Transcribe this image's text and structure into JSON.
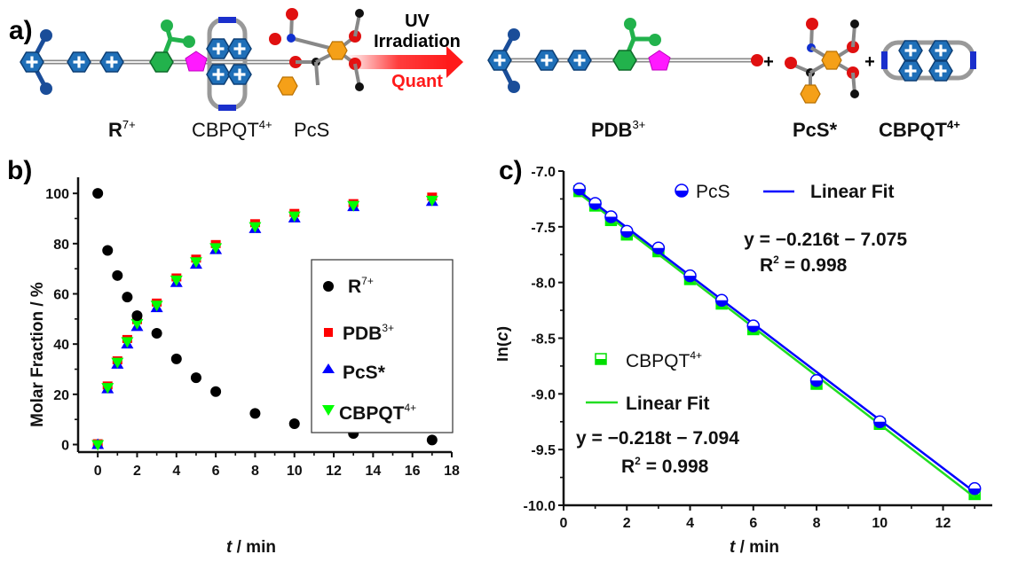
{
  "scheme": {
    "panel_label": "a)",
    "arrow_top_line1": "UV",
    "arrow_top_line2": "Irradiation",
    "arrow_bottom": "Quant",
    "plus": "+",
    "labels": {
      "r_base": "R",
      "r_sup": "7+",
      "cbpqt_base": "CBPQT",
      "cbpqt_sup": "4+",
      "pcs": "PcS",
      "pdb_base": "PDB",
      "pdb_sup": "3+",
      "pcs_star": "PcS*",
      "cbpqt2_base": "CBPQT",
      "cbpqt2_sup": "4+"
    },
    "colors": {
      "arrow": "#ff1a1a",
      "pyridinium": "#1f6fb8",
      "stopper": "#1a4d99",
      "green_unit": "#22b24c",
      "pentagon": "#ff1aff",
      "oxygen": "#e01010",
      "carbon": "#111111",
      "nitrogen": "#1030d0",
      "orange_ring": "#f5a018"
    }
  },
  "chart_data": [
    {
      "panel_label": "b)",
      "type": "scatter",
      "title": "",
      "xlabel_italic": "t",
      "xlabel_rest": " / min",
      "ylabel": "Molar Fraction / %",
      "xlim": [
        -1,
        18
      ],
      "ylim": [
        -3,
        105
      ],
      "xticks": [
        0,
        2,
        4,
        6,
        8,
        10,
        12,
        14,
        16,
        18
      ],
      "xtick_labels": [
        "0",
        "2",
        "4",
        "6",
        "8",
        "10",
        "12",
        "14",
        "16",
        "18"
      ],
      "yticks": [
        0,
        20,
        40,
        60,
        80,
        100
      ],
      "ytick_labels": [
        "0",
        "20",
        "40",
        "60",
        "80",
        "100"
      ],
      "grid": false,
      "legend_position": "center-right",
      "x": [
        0,
        0.5,
        1,
        1.5,
        2,
        3,
        4,
        5,
        6,
        8,
        10,
        13,
        17
      ],
      "series": [
        {
          "name": "R",
          "sup": "7+",
          "marker": "circle",
          "color": "#000000",
          "values": [
            100,
            77.3,
            67.3,
            58.7,
            51.3,
            44.3,
            34.1,
            26.6,
            21.1,
            12.4,
            8.3,
            4.4,
            1.8
          ]
        },
        {
          "name": "PDB",
          "sup": "3+",
          "marker": "square",
          "color": "#ff0000",
          "values": [
            0,
            23,
            33,
            41.5,
            49,
            56,
            66,
            73.5,
            79.3,
            87.6,
            91.7,
            95.6,
            98.2
          ]
        },
        {
          "name": "PcS*",
          "sup": "",
          "marker": "triangle-up",
          "color": "#0000ff",
          "values": [
            0,
            22.2,
            32,
            40,
            47,
            54.5,
            64.5,
            71.8,
            77.6,
            86,
            90.2,
            94.7,
            96.8
          ]
        },
        {
          "name": "CBPQT",
          "sup": "4+",
          "marker": "triangle-down",
          "color": "#00ff00",
          "values": [
            0,
            22.7,
            32.8,
            41,
            48.2,
            55.5,
            65.5,
            72.8,
            78.4,
            86.8,
            91,
            95.2,
            97.3
          ]
        }
      ]
    },
    {
      "panel_label": "c)",
      "type": "scatter",
      "title": "",
      "xlabel_italic": "t",
      "xlabel_rest": " / min",
      "ylabel_pre": "ln(",
      "ylabel_italic": "c",
      "ylabel_post": ")",
      "xlim": [
        0,
        13.5
      ],
      "ylim": [
        -10.0,
        -7.0
      ],
      "xticks": [
        0,
        2,
        4,
        6,
        8,
        10,
        12
      ],
      "xtick_labels": [
        "0",
        "2",
        "4",
        "6",
        "8",
        "10",
        "12"
      ],
      "yticks": [
        -7.0,
        -7.5,
        -8.0,
        -8.5,
        -9.0,
        -9.5,
        -10.0
      ],
      "ytick_labels": [
        "-7.0",
        "-7.5",
        "-8.0",
        "-8.5",
        "-9.0",
        "-9.5",
        "-10.0"
      ],
      "grid": false,
      "x": [
        0.5,
        1,
        1.5,
        2,
        3,
        4,
        5,
        6,
        8,
        10,
        13
      ],
      "series": [
        {
          "name": "PcS",
          "marker": "half-filled-circle",
          "color": "#0000ff",
          "values": [
            -7.16,
            -7.29,
            -7.41,
            -7.54,
            -7.69,
            -7.94,
            -8.16,
            -8.39,
            -8.88,
            -9.25,
            -9.85
          ],
          "fit": {
            "label": "Linear Fit",
            "slope": -0.216,
            "intercept": -7.075,
            "r2": 0.998,
            "equation": "y = −0.216t − 7.075",
            "r2_label_pre": "R",
            "r2_label_sup": "2",
            "r2_label_post": " = 0.998",
            "color": "#0000ff"
          }
        },
        {
          "name": "CBPQT",
          "sup": "4+",
          "marker": "half-filled-square",
          "color": "#00ee00",
          "values": [
            -7.18,
            -7.31,
            -7.44,
            -7.57,
            -7.72,
            -7.97,
            -8.19,
            -8.42,
            -8.91,
            -9.27,
            -9.9
          ],
          "fit": {
            "label": "Linear Fit",
            "slope": -0.218,
            "intercept": -7.094,
            "r2": 0.998,
            "equation": "y = −0.218t − 7.094",
            "r2_label_pre": "R",
            "r2_label_sup": "2",
            "r2_label_post": " = 0.998",
            "color": "#22dd22"
          }
        }
      ]
    }
  ]
}
